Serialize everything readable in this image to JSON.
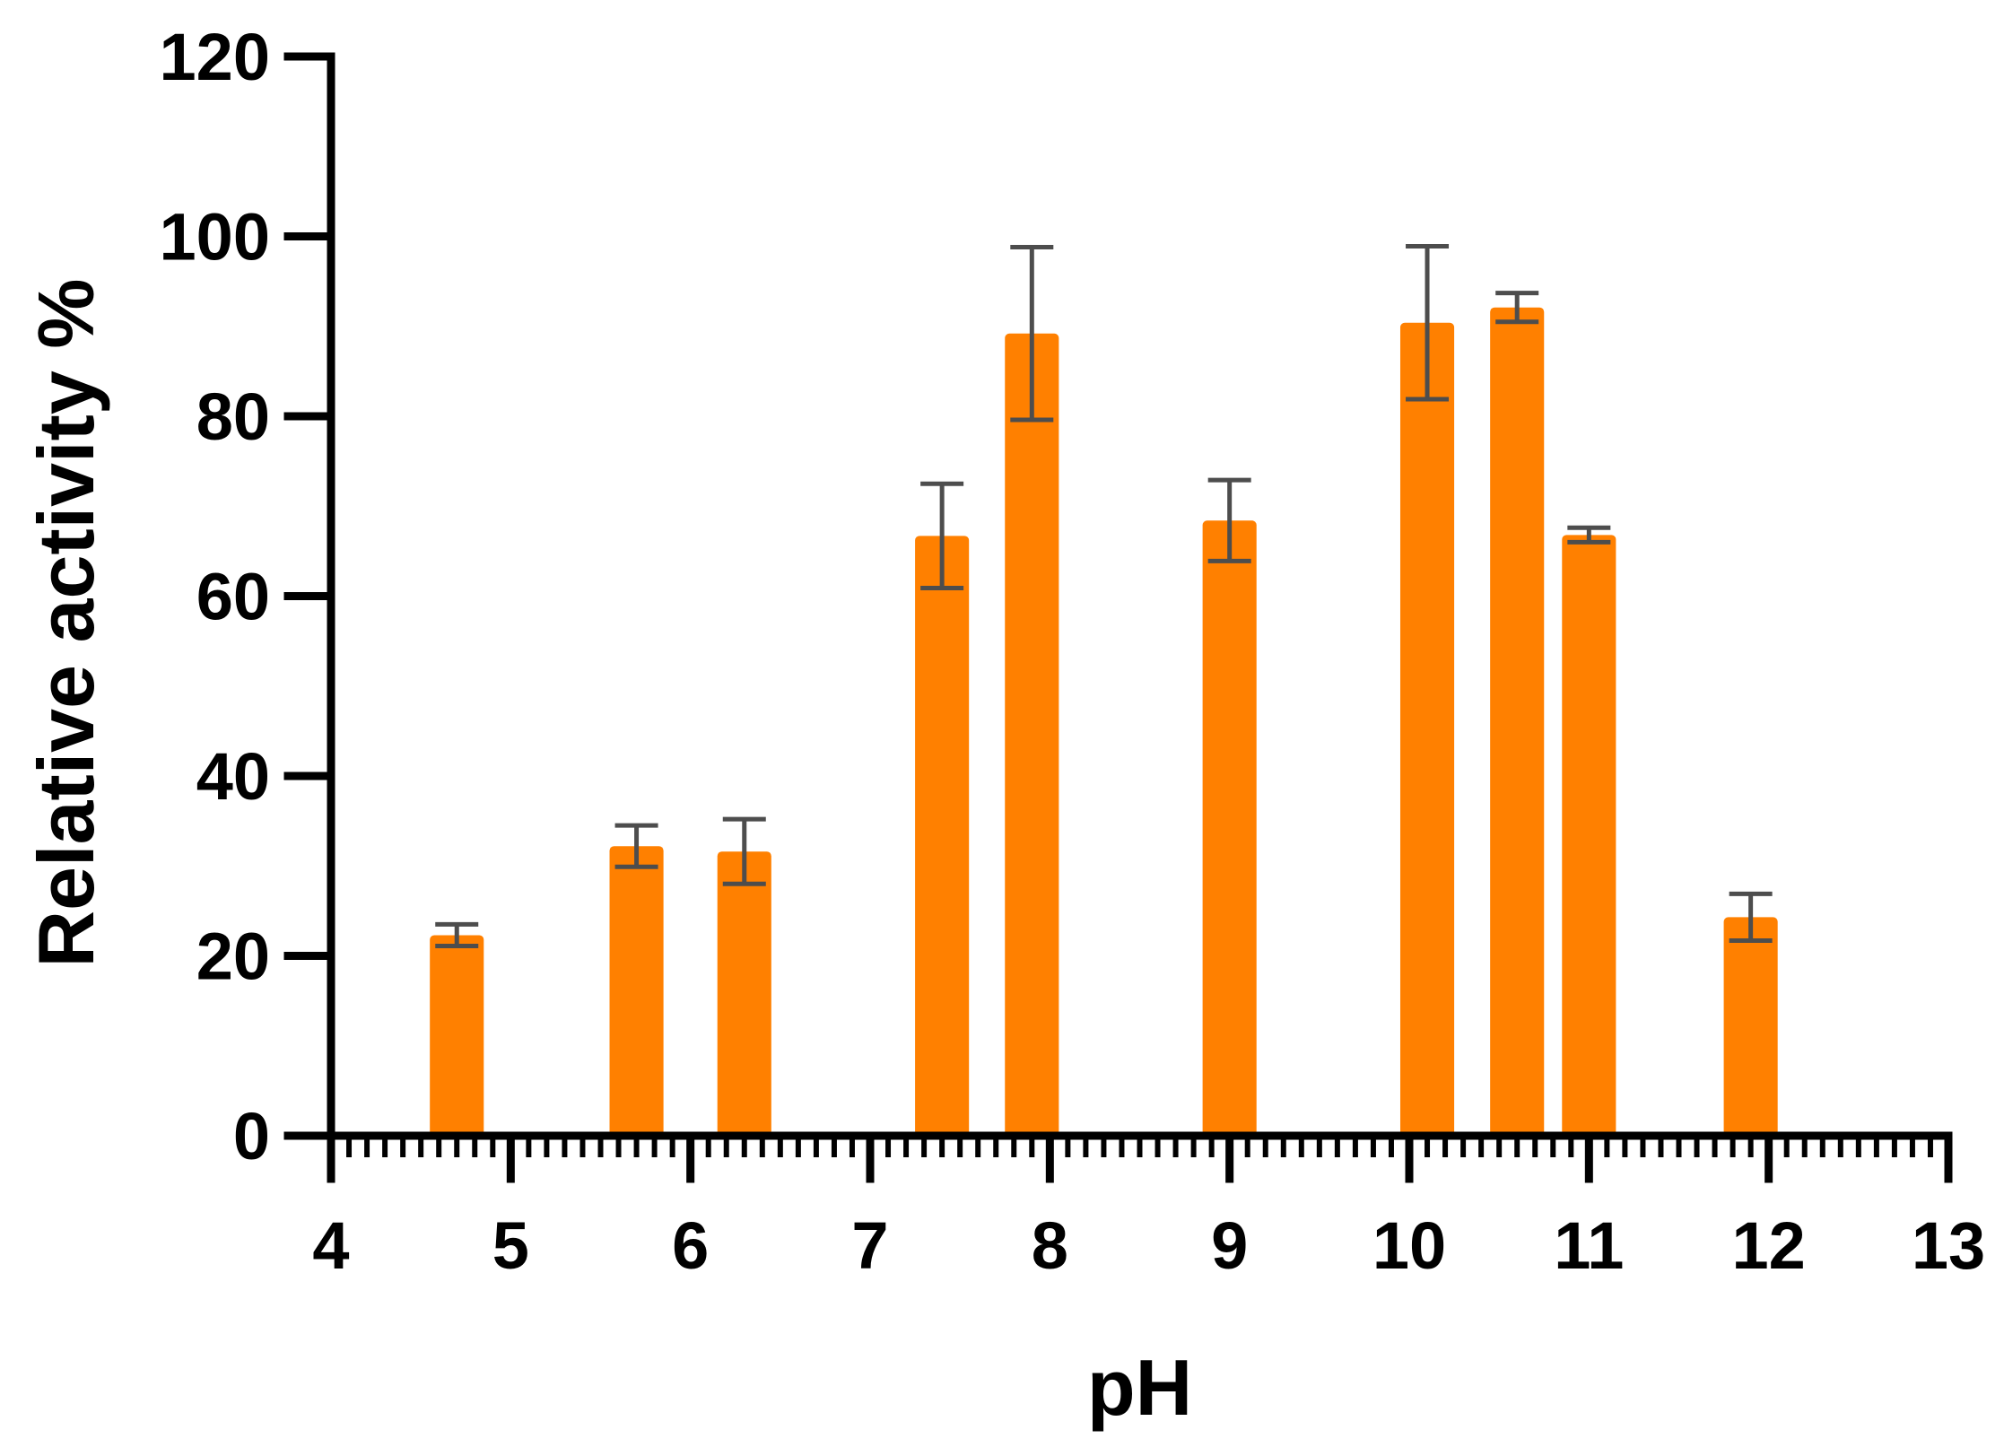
{
  "chart_data": {
    "type": "bar",
    "title": "",
    "xlabel": "pH",
    "ylabel": "Relative activity %",
    "xlim": [
      4,
      13
    ],
    "ylim": [
      0,
      120
    ],
    "x_ticks": [
      4,
      5,
      6,
      7,
      8,
      9,
      10,
      11,
      12,
      13
    ],
    "y_ticks": [
      0,
      20,
      40,
      60,
      80,
      100,
      120
    ],
    "x_minor_step": 0.1,
    "grid": false,
    "legend": "none",
    "bar_color": "#ff8000",
    "error_bar_color": "#4d4d4d",
    "axis_color": "#000000",
    "bar_width_ph": 0.3,
    "x": [
      4.7,
      5.7,
      6.3,
      7.4,
      7.9,
      9.0,
      10.1,
      10.6,
      11.0,
      11.9
    ],
    "values": [
      22.3,
      32.2,
      31.6,
      66.7,
      89.2,
      68.4,
      90.4,
      92.1,
      66.8,
      24.3
    ],
    "errors": [
      1.2,
      2.3,
      3.6,
      5.8,
      9.6,
      4.5,
      8.5,
      1.6,
      0.8,
      2.6
    ]
  }
}
